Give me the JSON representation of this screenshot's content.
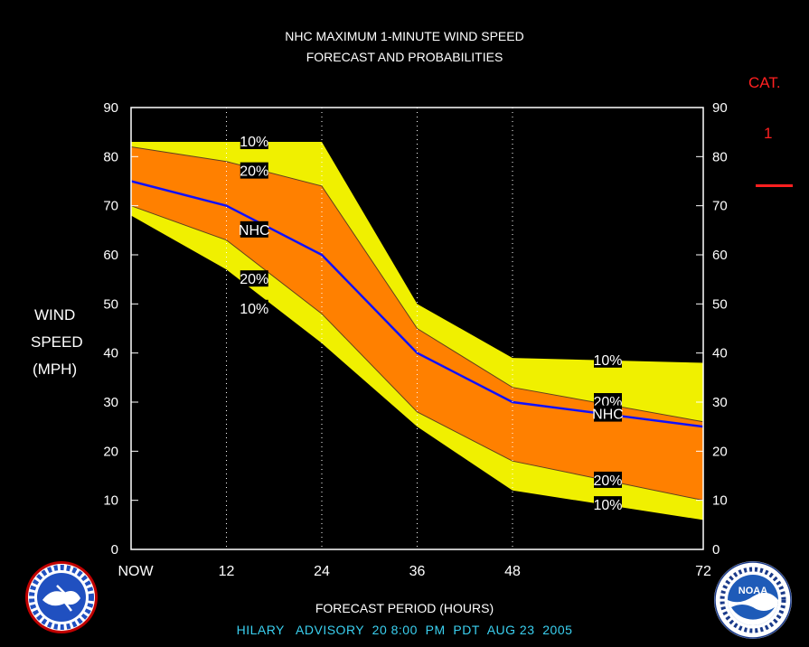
{
  "header": {
    "title_line1": "NHC MAXIMUM 1-MINUTE WIND SPEED",
    "title_line2": "FORECAST AND PROBABILITIES"
  },
  "category": {
    "label": "CAT.",
    "value": "1",
    "color": "#ff2020"
  },
  "y_axis_title": [
    "WIND",
    "SPEED",
    "(MPH)"
  ],
  "x_axis_title": "FORECAST PERIOD (HOURS)",
  "footer": "HILARY   ADVISORY  20 8:00  PM  PDT  AUG 23  2005",
  "colors": {
    "outer_band": "#f0f000",
    "inner_band": "#ff8000",
    "nhc_line": "#1010ff",
    "background": "#000000",
    "footer": "#3ad0f0"
  },
  "chart_data": {
    "type": "area",
    "x": [
      0,
      12,
      24,
      36,
      48,
      72
    ],
    "x_tick_labels": [
      "NOW",
      "12",
      "24",
      "36",
      "48",
      "72"
    ],
    "ylim": [
      0,
      90
    ],
    "y_ticks": [
      0,
      10,
      20,
      30,
      40,
      50,
      60,
      70,
      80,
      90
    ],
    "grid": "dotted vertical at 12, 24, 36, 48",
    "series": [
      {
        "name": "10%",
        "values": [
          83,
          83,
          83,
          50,
          39,
          38
        ]
      },
      {
        "name": "20%",
        "values": [
          82,
          79,
          74,
          45,
          33,
          26
        ]
      },
      {
        "name": "NHC",
        "values": [
          75,
          70,
          60,
          40,
          30,
          25
        ]
      },
      {
        "name": "20%",
        "values": [
          70,
          63,
          48,
          28,
          18,
          10
        ]
      },
      {
        "name": "10%",
        "values": [
          68,
          57,
          42,
          25,
          12,
          6
        ]
      }
    ],
    "labels": [
      {
        "text": "10%",
        "x": 15.5,
        "y": 83
      },
      {
        "text": "20%",
        "x": 15.5,
        "y": 77
      },
      {
        "text": "NHC",
        "x": 15.5,
        "y": 65
      },
      {
        "text": "20%",
        "x": 15.5,
        "y": 55
      },
      {
        "text": "10%",
        "x": 15.5,
        "y": 49
      },
      {
        "text": "10%",
        "x": 60,
        "y": 38.5
      },
      {
        "text": "20%",
        "x": 60,
        "y": 30
      },
      {
        "text": "NHC",
        "x": 60,
        "y": 27.5
      },
      {
        "text": "20%",
        "x": 60,
        "y": 14
      },
      {
        "text": "10%",
        "x": 60,
        "y": 9
      }
    ]
  }
}
